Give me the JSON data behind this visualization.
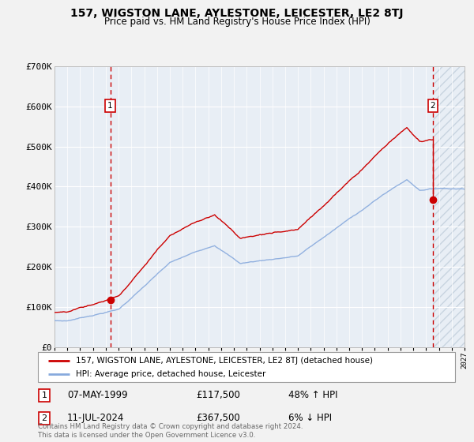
{
  "title": "157, WIGSTON LANE, AYLESTONE, LEICESTER, LE2 8TJ",
  "subtitle": "Price paid vs. HM Land Registry's House Price Index (HPI)",
  "ylim": [
    0,
    700000
  ],
  "xlim_start": 1995.0,
  "xlim_end": 2027.0,
  "bg_color": "#f2f2f2",
  "plot_bg_color": "#e8eef5",
  "grid_color": "#ffffff",
  "hatch_color": "#c8d4e0",
  "sale1_x": 1999.35,
  "sale1_y": 117500,
  "sale2_x": 2024.53,
  "sale2_y": 367500,
  "sale1_date": "07-MAY-1999",
  "sale1_price": "£117,500",
  "sale1_hpi": "48% ↑ HPI",
  "sale2_date": "11-JUL-2024",
  "sale2_price": "£367,500",
  "sale2_hpi": "6% ↓ HPI",
  "legend_line1": "157, WIGSTON LANE, AYLESTONE, LEICESTER, LE2 8TJ (detached house)",
  "legend_line2": "HPI: Average price, detached house, Leicester",
  "footer": "Contains HM Land Registry data © Crown copyright and database right 2024.\nThis data is licensed under the Open Government Licence v3.0.",
  "red_color": "#cc0000",
  "blue_color": "#88aadd",
  "yticks": [
    0,
    100000,
    200000,
    300000,
    400000,
    500000,
    600000,
    700000
  ],
  "ytick_labels": [
    "£0",
    "£100K",
    "£200K",
    "£300K",
    "£400K",
    "£500K",
    "£600K",
    "£700K"
  ]
}
